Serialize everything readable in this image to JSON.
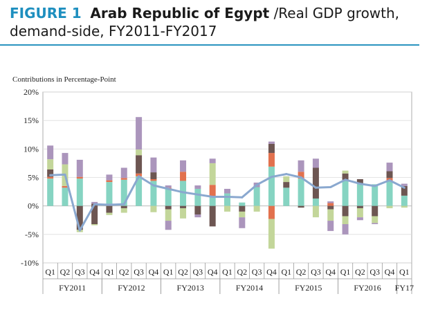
{
  "figure": {
    "number": "FIGURE 1",
    "country": "Arab Republic of Egypt",
    "title": "/Real GDP growth, demand-side, FY2011-FY2017"
  },
  "chart_data": {
    "type": "bar",
    "ylabel": "Contributions in Percentage-Point",
    "ylim": [
      -10,
      20
    ],
    "yticks": [
      20,
      15,
      10,
      5,
      0,
      -5,
      -10
    ],
    "ytick_labels": [
      "20%",
      "15%",
      "10%",
      "5%",
      "0%",
      "-5%",
      "-10%"
    ],
    "categories": [
      "Q1",
      "Q2",
      "Q3",
      "Q4",
      "Q1",
      "Q2",
      "Q3",
      "Q4",
      "Q1",
      "Q2",
      "Q3",
      "Q4",
      "Q1",
      "Q2",
      "Q3",
      "Q4",
      "Q1",
      "Q2",
      "Q3",
      "Q4",
      "Q1",
      "Q2",
      "Q3",
      "Q4",
      "Q1"
    ],
    "groups": [
      {
        "label": "FY2011",
        "start": 0,
        "end": 3
      },
      {
        "label": "FY2012",
        "start": 4,
        "end": 7
      },
      {
        "label": "FY2013",
        "start": 8,
        "end": 11
      },
      {
        "label": "FY2014",
        "start": 12,
        "end": 15
      },
      {
        "label": "FY2015",
        "start": 16,
        "end": 19
      },
      {
        "label": "FY2016",
        "start": 20,
        "end": 23
      },
      {
        "label": "FY17",
        "start": 24,
        "end": 24
      }
    ],
    "stack_series": [
      {
        "color": "#86d4c2",
        "values": [
          4.8,
          3.2,
          4.8,
          0.0,
          4.2,
          4.6,
          5.2,
          4.4,
          3.0,
          4.4,
          3.0,
          1.5,
          2.2,
          0.6,
          3.3,
          6.9,
          3.2,
          4.8,
          1.3,
          -0.2,
          4.6,
          3.9,
          3.8,
          4.4,
          1.8
        ]
      },
      {
        "color": "#e2714e",
        "values": [
          0.3,
          0.3,
          0.3,
          0.0,
          0.3,
          0.3,
          0.5,
          0.3,
          0.2,
          1.6,
          0.0,
          2.2,
          0.0,
          0.0,
          0.0,
          2.4,
          0.0,
          1.2,
          0.0,
          0.5,
          0.0,
          0.0,
          0.0,
          0.5,
          0.0
        ]
      },
      {
        "color": "#6d5652",
        "values": [
          1.3,
          0.0,
          0.0,
          0.4,
          0.0,
          0.0,
          3.2,
          1.2,
          0.0,
          0.0,
          0.0,
          0.0,
          0.0,
          0.0,
          0.0,
          1.6,
          1.0,
          0.0,
          5.4,
          0.0,
          1.1,
          0.8,
          0.0,
          1.2,
          1.7
        ]
      },
      {
        "color": "#c3d69a",
        "values": [
          1.8,
          3.8,
          0.0,
          0.0,
          0.0,
          0.0,
          1.0,
          0.0,
          0.0,
          0.0,
          0.0,
          3.8,
          0.0,
          0.0,
          0.0,
          0.0,
          1.0,
          0.0,
          0.0,
          0.0,
          0.5,
          0.0,
          0.0,
          0.0,
          0.0
        ]
      },
      {
        "color": "#ab95bc",
        "values": [
          2.4,
          2.0,
          3.0,
          0.3,
          1.0,
          1.8,
          5.7,
          2.6,
          0.4,
          2.0,
          0.6,
          0.8,
          0.8,
          0.0,
          0.8,
          0.4,
          0.0,
          2.0,
          1.6,
          0.3,
          0.0,
          0.0,
          0.0,
          1.5,
          0.4
        ]
      }
    ],
    "negative_series": [
      {
        "color": "#86d4c2",
        "values": [
          0,
          0,
          0,
          0,
          0,
          0,
          0,
          0,
          0,
          0,
          0,
          0,
          0,
          0,
          0,
          0,
          0,
          0,
          0,
          0,
          0,
          0,
          0,
          0,
          0
        ]
      },
      {
        "color": "#e2714e",
        "values": [
          0,
          0,
          0,
          0,
          0,
          0,
          0,
          0,
          0,
          0,
          0,
          0,
          0,
          0,
          0,
          -2.3,
          0,
          0,
          0,
          0,
          0,
          0,
          0,
          0,
          0
        ]
      },
      {
        "color": "#6d5652",
        "values": [
          0,
          0,
          -4.2,
          -3.2,
          -1.2,
          -0.4,
          0,
          0,
          -0.6,
          -0.4,
          -1.5,
          -3.6,
          0,
          -1.0,
          0,
          0,
          0,
          -0.3,
          0,
          -0.6,
          -1.8,
          -0.4,
          -1.8,
          0,
          0
        ]
      },
      {
        "color": "#c3d69a",
        "values": [
          0,
          0,
          -0.4,
          -0.2,
          -0.4,
          -0.8,
          0,
          -1.1,
          -2.0,
          -1.8,
          0,
          0,
          -1.0,
          -1.0,
          -1.0,
          -5.2,
          0,
          0,
          -2.0,
          -2.0,
          -1.4,
          -1.6,
          -1.2,
          -0.4,
          -0.3
        ]
      },
      {
        "color": "#ab95bc",
        "values": [
          0,
          0,
          0,
          0,
          0,
          0,
          0,
          0,
          -1.6,
          0,
          -0.5,
          0,
          0,
          -1.9,
          0,
          0,
          0,
          0,
          0,
          -1.8,
          -1.8,
          -0.5,
          -0.2,
          0,
          0
        ]
      }
    ],
    "line": {
      "name": "Real GDP growth",
      "color": "#8aa8cf",
      "values": [
        5.4,
        5.5,
        -4.3,
        0.3,
        0.2,
        0.3,
        5.2,
        3.6,
        3.0,
        2.4,
        2.0,
        1.6,
        1.6,
        1.5,
        3.7,
        5.1,
        5.6,
        5.0,
        3.2,
        3.3,
        4.6,
        3.9,
        3.5,
        4.5,
        3.2
      ]
    }
  }
}
